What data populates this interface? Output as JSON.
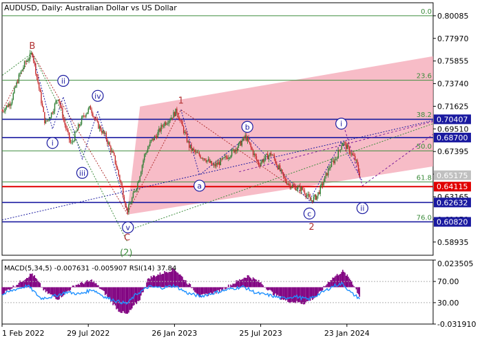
{
  "chart_data": [
    {
      "type": "candlestick",
      "title": "AUDUSD, Daily:  Australian Dollar vs US Dollar",
      "ylim": [
        0.577,
        0.813
      ],
      "price_axis_ticks": [
        "0.80085",
        "0.77970",
        "0.75855",
        "0.73740",
        "0.71625",
        "0.69510",
        "0.67395",
        "0.65280",
        "0.63165",
        "0.61050",
        "0.58935"
      ],
      "x_axis_labels": [
        {
          "label": "1 Feb 2022",
          "t": 0
        },
        {
          "label": "29 Jul 2022",
          "t": 0.2
        },
        {
          "label": "26 Jan 2023",
          "t": 0.4
        },
        {
          "label": "25 Jul 2023",
          "t": 0.6
        },
        {
          "label": "23 Jan 2024",
          "t": 0.8
        }
      ],
      "price_path": [
        {
          "t": 0.0,
          "v": 0.712
        },
        {
          "t": 0.02,
          "v": 0.72
        },
        {
          "t": 0.04,
          "v": 0.745
        },
        {
          "t": 0.055,
          "v": 0.758
        },
        {
          "t": 0.07,
          "v": 0.766
        },
        {
          "t": 0.085,
          "v": 0.735
        },
        {
          "t": 0.1,
          "v": 0.7
        },
        {
          "t": 0.115,
          "v": 0.71
        },
        {
          "t": 0.13,
          "v": 0.725
        },
        {
          "t": 0.145,
          "v": 0.7
        },
        {
          "t": 0.16,
          "v": 0.68
        },
        {
          "t": 0.175,
          "v": 0.695
        },
        {
          "t": 0.19,
          "v": 0.708
        },
        {
          "t": 0.205,
          "v": 0.715
        },
        {
          "t": 0.22,
          "v": 0.7
        },
        {
          "t": 0.24,
          "v": 0.688
        },
        {
          "t": 0.26,
          "v": 0.668
        },
        {
          "t": 0.275,
          "v": 0.645
        },
        {
          "t": 0.29,
          "v": 0.618
        },
        {
          "t": 0.3,
          "v": 0.628
        },
        {
          "t": 0.315,
          "v": 0.645
        },
        {
          "t": 0.33,
          "v": 0.67
        },
        {
          "t": 0.345,
          "v": 0.683
        },
        {
          "t": 0.36,
          "v": 0.69
        },
        {
          "t": 0.375,
          "v": 0.7
        },
        {
          "t": 0.39,
          "v": 0.705
        },
        {
          "t": 0.405,
          "v": 0.712
        },
        {
          "t": 0.42,
          "v": 0.695
        },
        {
          "t": 0.435,
          "v": 0.678
        },
        {
          "t": 0.45,
          "v": 0.672
        },
        {
          "t": 0.47,
          "v": 0.668
        },
        {
          "t": 0.49,
          "v": 0.66
        },
        {
          "t": 0.51,
          "v": 0.665
        },
        {
          "t": 0.53,
          "v": 0.672
        },
        {
          "t": 0.55,
          "v": 0.68
        },
        {
          "t": 0.565,
          "v": 0.688
        },
        {
          "t": 0.58,
          "v": 0.675
        },
        {
          "t": 0.595,
          "v": 0.662
        },
        {
          "t": 0.61,
          "v": 0.668
        },
        {
          "t": 0.625,
          "v": 0.672
        },
        {
          "t": 0.64,
          "v": 0.66
        },
        {
          "t": 0.655,
          "v": 0.648
        },
        {
          "t": 0.67,
          "v": 0.642
        },
        {
          "t": 0.685,
          "v": 0.64
        },
        {
          "t": 0.7,
          "v": 0.638
        },
        {
          "t": 0.715,
          "v": 0.628
        },
        {
          "t": 0.73,
          "v": 0.632
        },
        {
          "t": 0.745,
          "v": 0.645
        },
        {
          "t": 0.76,
          "v": 0.66
        },
        {
          "t": 0.775,
          "v": 0.668
        },
        {
          "t": 0.79,
          "v": 0.683
        },
        {
          "t": 0.805,
          "v": 0.675
        },
        {
          "t": 0.82,
          "v": 0.666
        },
        {
          "t": 0.83,
          "v": 0.6517
        }
      ],
      "levels": [
        {
          "price": 0.80085,
          "color": "#3c8c3c",
          "label": "0.0",
          "kind": "fib"
        },
        {
          "price": 0.7406,
          "color": "#3c8c3c",
          "label": "23.6",
          "kind": "fib"
        },
        {
          "price": 0.7042,
          "color": "#3c8c3c",
          "label": "38.2",
          "kind": "fib"
        },
        {
          "price": 0.6746,
          "color": "#3c8c3c",
          "label": "50.0",
          "kind": "fib"
        },
        {
          "price": 0.6456,
          "color": "#3c8c3c",
          "label": "61.8",
          "kind": "fib"
        },
        {
          "price": 0.6082,
          "color": "#3c8c3c",
          "label": "76.0",
          "kind": "fib"
        },
        {
          "price": 0.70407,
          "color": "#1a1aa0",
          "label": "",
          "kind": "support"
        },
        {
          "price": 0.687,
          "color": "#1a1aa0",
          "label": "",
          "kind": "support"
        },
        {
          "price": 0.62632,
          "color": "#1a1aa0",
          "label": "",
          "kind": "support"
        },
        {
          "price": 0.64115,
          "color": "#e00000",
          "label": "",
          "kind": "support"
        },
        {
          "price": 0.6082,
          "color": "#1a1aa0",
          "label": "",
          "kind": "support"
        }
      ],
      "price_tags": [
        {
          "price": 0.70407,
          "label": "0.70407",
          "bg": "#1a1aa0",
          "fg": "#ffffff"
        },
        {
          "price": 0.687,
          "label": "0.68700",
          "bg": "#1a1aa0",
          "fg": "#ffffff"
        },
        {
          "price": 0.65175,
          "label": "0.65175",
          "bg": "#c0c0c0",
          "fg": "#ffffff"
        },
        {
          "price": 0.64115,
          "label": "0.64115",
          "bg": "#e00000",
          "fg": "#ffffff"
        },
        {
          "price": 0.62632,
          "label": "0.62632",
          "bg": "#1a1aa0",
          "fg": "#ffffff"
        },
        {
          "price": 0.6082,
          "label": "0.60820",
          "bg": "#1a1aa0",
          "fg": "#ffffff"
        }
      ],
      "channel": {
        "color": "#f4a6b4",
        "upper": [
          {
            "t": 0.32,
            "v": 0.716
          },
          {
            "t": 1.0,
            "v": 0.763
          }
        ],
        "lower": [
          {
            "t": 0.29,
            "v": 0.615
          },
          {
            "t": 1.0,
            "v": 0.66
          }
        ]
      },
      "wave_labels": [
        {
          "text": "B",
          "t": 0.07,
          "v": 0.773,
          "style": "plain",
          "color": "#b03030"
        },
        {
          "text": "ii",
          "t": 0.142,
          "v": 0.74,
          "style": "circle",
          "color": "#1a1aa0"
        },
        {
          "text": "iv",
          "t": 0.222,
          "v": 0.726,
          "style": "circle",
          "color": "#1a1aa0"
        },
        {
          "text": "i",
          "t": 0.117,
          "v": 0.682,
          "style": "circle",
          "color": "#1a1aa0"
        },
        {
          "text": "iii",
          "t": 0.186,
          "v": 0.654,
          "style": "circle",
          "color": "#1a1aa0"
        },
        {
          "text": "v",
          "t": 0.292,
          "v": 0.603,
          "style": "circle",
          "color": "#1a1aa0"
        },
        {
          "text": "C",
          "t": 0.29,
          "v": 0.594,
          "style": "plain",
          "color": "#b03030"
        },
        {
          "text": "(2)",
          "t": 0.288,
          "v": 0.58,
          "style": "plain",
          "color": "#3c8c3c"
        },
        {
          "text": "1",
          "t": 0.415,
          "v": 0.722,
          "style": "plain",
          "color": "#b03030"
        },
        {
          "text": "a",
          "t": 0.458,
          "v": 0.642,
          "style": "circle",
          "color": "#1a1aa0"
        },
        {
          "text": "b",
          "t": 0.569,
          "v": 0.697,
          "style": "circle",
          "color": "#1a1aa0"
        },
        {
          "text": "c",
          "t": 0.713,
          "v": 0.616,
          "style": "circle",
          "color": "#1a1aa0"
        },
        {
          "text": "2",
          "t": 0.718,
          "v": 0.604,
          "style": "plain",
          "color": "#b03030"
        },
        {
          "text": "i",
          "t": 0.787,
          "v": 0.7,
          "style": "circle",
          "color": "#1a1aa0"
        },
        {
          "text": "ii",
          "t": 0.836,
          "v": 0.621,
          "style": "circle",
          "color": "#1a1aa0"
        }
      ],
      "zigzags": [
        {
          "color": "#b03030",
          "dash": "2,2",
          "points": [
            {
              "t": 0.0,
              "v": 0.712
            },
            {
              "t": 0.07,
              "v": 0.766
            },
            {
              "t": 0.29,
              "v": 0.616
            },
            {
              "t": 0.415,
              "v": 0.713
            },
            {
              "t": 0.718,
              "v": 0.628
            }
          ]
        },
        {
          "color": "#1a1aa0",
          "dash": "2,2",
          "points": [
            {
              "t": 0.07,
              "v": 0.766
            },
            {
              "t": 0.117,
              "v": 0.695
            },
            {
              "t": 0.142,
              "v": 0.725
            },
            {
              "t": 0.186,
              "v": 0.667
            },
            {
              "t": 0.222,
              "v": 0.712
            },
            {
              "t": 0.292,
              "v": 0.616
            }
          ]
        },
        {
          "color": "#1a1aa0",
          "dash": "2,2",
          "points": [
            {
              "t": 0.415,
              "v": 0.713
            },
            {
              "t": 0.458,
              "v": 0.652
            },
            {
              "t": 0.569,
              "v": 0.688
            },
            {
              "t": 0.713,
              "v": 0.628
            },
            {
              "t": 0.787,
              "v": 0.683
            },
            {
              "t": 0.836,
              "v": 0.646
            }
          ]
        },
        {
          "color": "#3c8c3c",
          "dash": "2,2",
          "points": [
            {
              "t": 0.07,
              "v": 0.766
            },
            {
              "t": 0.0,
              "v": 0.745
            }
          ]
        },
        {
          "color": "#3c8c3c",
          "dash": "2,2",
          "points": [
            {
              "t": 0.29,
              "v": 0.6
            },
            {
              "t": 1.0,
              "v": 0.7
            }
          ]
        },
        {
          "color": "#1a1aa0",
          "dash": "2,2",
          "points": [
            {
              "t": 0.0,
              "v": 0.61
            },
            {
              "t": 1.0,
              "v": 0.703
            }
          ]
        },
        {
          "color": "#7a1a9a",
          "dash": "3,3",
          "points": [
            {
              "t": 0.55,
              "v": 0.655
            },
            {
              "t": 1.0,
              "v": 0.702
            }
          ]
        },
        {
          "color": "#7a1a9a",
          "dash": "3,3",
          "points": [
            {
              "t": 0.787,
              "v": 0.705
            },
            {
              "t": 0.836,
              "v": 0.642
            },
            {
              "t": 1.0,
              "v": 0.69
            }
          ]
        },
        {
          "color": "#3c8c3c",
          "dash": "2,2",
          "points": [
            {
              "t": 0.07,
              "v": 0.766
            },
            {
              "t": 0.29,
              "v": 0.59
            }
          ]
        }
      ]
    },
    {
      "type": "histogram",
      "header": "MACD(5,34,5) -0.007631 -0.005907 RSI(14) 37.84",
      "ylim": [
        -0.03191,
        0.023505
      ],
      "axis_ticks": [
        "0.023505",
        "70.00",
        "30.00",
        "-0.031910"
      ],
      "rsi_levels": [
        70,
        30
      ],
      "macd_path": [
        {
          "t": 0.0,
          "v": -0.006
        },
        {
          "t": 0.04,
          "v": 0.004
        },
        {
          "t": 0.07,
          "v": 0.012
        },
        {
          "t": 0.1,
          "v": -0.004
        },
        {
          "t": 0.13,
          "v": -0.01
        },
        {
          "t": 0.17,
          "v": 0.002
        },
        {
          "t": 0.21,
          "v": 0.006
        },
        {
          "t": 0.24,
          "v": -0.006
        },
        {
          "t": 0.27,
          "v": -0.02
        },
        {
          "t": 0.29,
          "v": -0.024
        },
        {
          "t": 0.32,
          "v": -0.01
        },
        {
          "t": 0.34,
          "v": 0.008
        },
        {
          "t": 0.37,
          "v": 0.012
        },
        {
          "t": 0.4,
          "v": 0.016
        },
        {
          "t": 0.43,
          "v": 0.004
        },
        {
          "t": 0.46,
          "v": -0.008
        },
        {
          "t": 0.5,
          "v": -0.004
        },
        {
          "t": 0.54,
          "v": 0.004
        },
        {
          "t": 0.57,
          "v": 0.01
        },
        {
          "t": 0.6,
          "v": 0.004
        },
        {
          "t": 0.63,
          "v": -0.006
        },
        {
          "t": 0.66,
          "v": -0.012
        },
        {
          "t": 0.7,
          "v": -0.014
        },
        {
          "t": 0.73,
          "v": -0.008
        },
        {
          "t": 0.76,
          "v": 0.006
        },
        {
          "t": 0.79,
          "v": 0.014
        },
        {
          "t": 0.81,
          "v": 0.006
        },
        {
          "t": 0.83,
          "v": -0.008
        }
      ],
      "rsi_path": [
        {
          "t": 0.0,
          "v": 45
        },
        {
          "t": 0.03,
          "v": 55
        },
        {
          "t": 0.06,
          "v": 62
        },
        {
          "t": 0.09,
          "v": 38
        },
        {
          "t": 0.12,
          "v": 42
        },
        {
          "t": 0.15,
          "v": 50
        },
        {
          "t": 0.18,
          "v": 46
        },
        {
          "t": 0.21,
          "v": 55
        },
        {
          "t": 0.24,
          "v": 40
        },
        {
          "t": 0.27,
          "v": 32
        },
        {
          "t": 0.29,
          "v": 28
        },
        {
          "t": 0.31,
          "v": 45
        },
        {
          "t": 0.34,
          "v": 60
        },
        {
          "t": 0.37,
          "v": 58
        },
        {
          "t": 0.4,
          "v": 62
        },
        {
          "t": 0.43,
          "v": 48
        },
        {
          "t": 0.46,
          "v": 42
        },
        {
          "t": 0.5,
          "v": 50
        },
        {
          "t": 0.53,
          "v": 56
        },
        {
          "t": 0.56,
          "v": 60
        },
        {
          "t": 0.59,
          "v": 48
        },
        {
          "t": 0.62,
          "v": 44
        },
        {
          "t": 0.65,
          "v": 38
        },
        {
          "t": 0.68,
          "v": 42
        },
        {
          "t": 0.71,
          "v": 36
        },
        {
          "t": 0.74,
          "v": 48
        },
        {
          "t": 0.77,
          "v": 62
        },
        {
          "t": 0.79,
          "v": 66
        },
        {
          "t": 0.81,
          "v": 48
        },
        {
          "t": 0.83,
          "v": 37.84
        }
      ],
      "histogram_color": "#800080",
      "rsi_color": "#1e90ff"
    }
  ]
}
